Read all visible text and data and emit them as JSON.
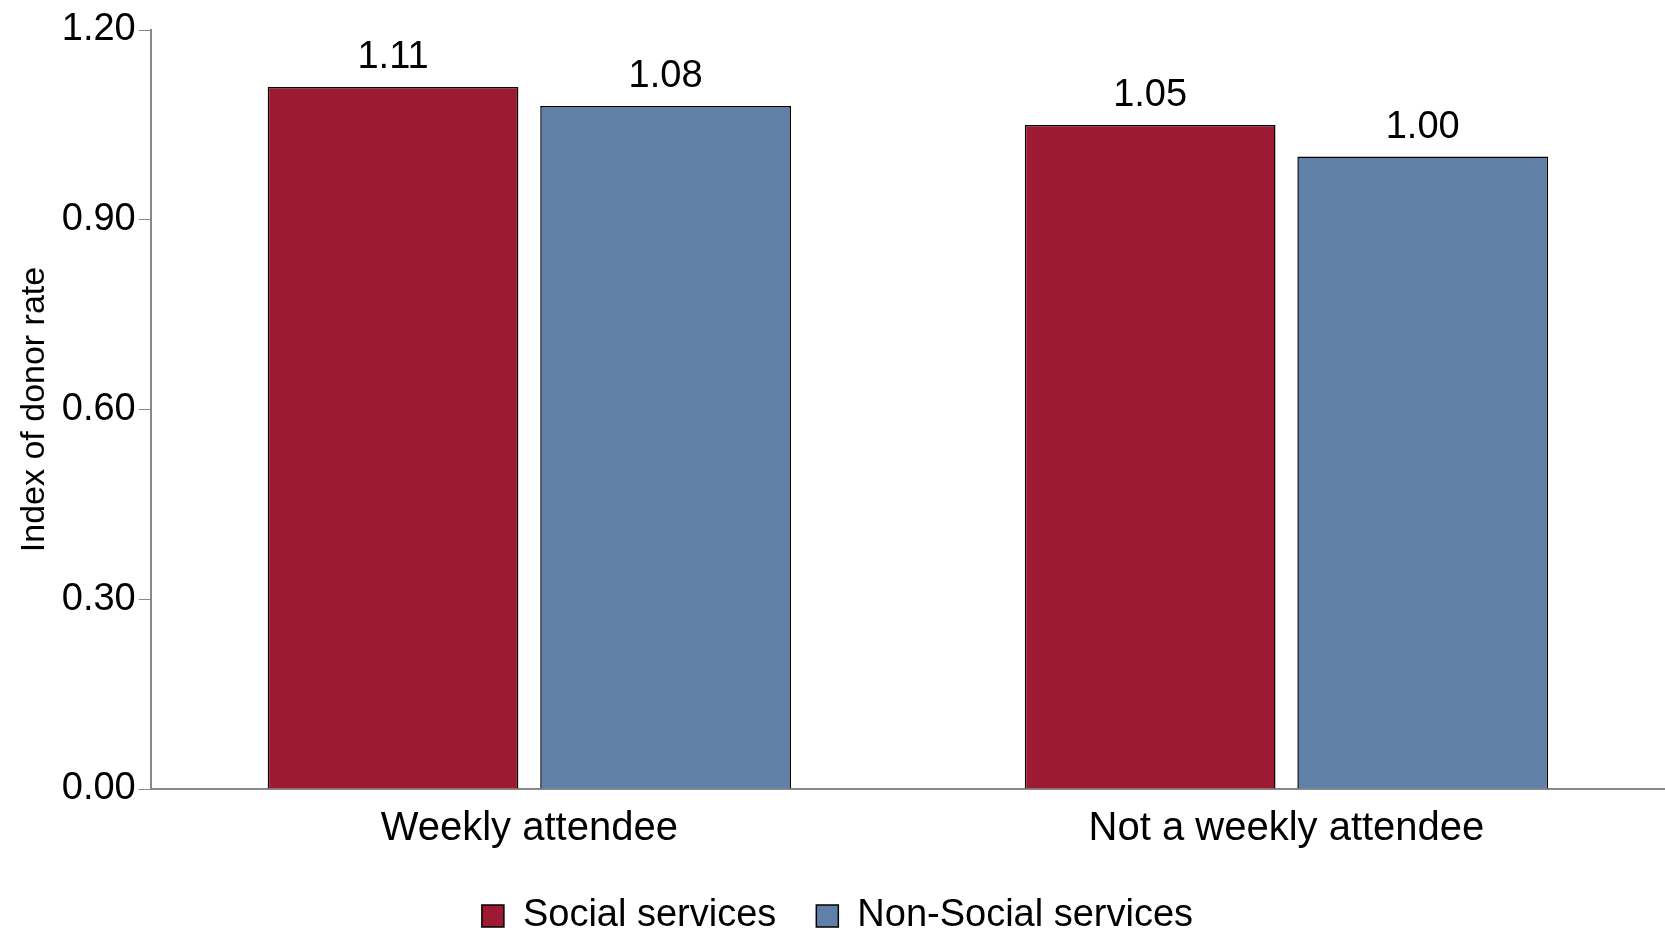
{
  "chart_data": {
    "type": "bar",
    "ylabel": "Index of donor rate",
    "categories": [
      "Weekly attendee",
      "Not a weekly attendee"
    ],
    "series": [
      {
        "name": "Social services",
        "color": "#9e1a32",
        "values": [
          1.11,
          1.05
        ],
        "value_labels": [
          "1.11",
          "1.05"
        ]
      },
      {
        "name": "Non-Social services",
        "color": "#6080a8",
        "values": [
          1.08,
          1.0
        ],
        "value_labels": [
          "1.08",
          "1.00"
        ]
      }
    ],
    "ylim": [
      0,
      1.2
    ],
    "yticks": [
      {
        "value": 0,
        "label": "0.00"
      },
      {
        "value": 0.3,
        "label": "0.30"
      },
      {
        "value": 0.6,
        "label": "0.60"
      },
      {
        "value": 0.9,
        "label": "0.90"
      },
      {
        "value": 1.2,
        "label": "1.20"
      }
    ],
    "grid": false,
    "legend": "bottom"
  }
}
